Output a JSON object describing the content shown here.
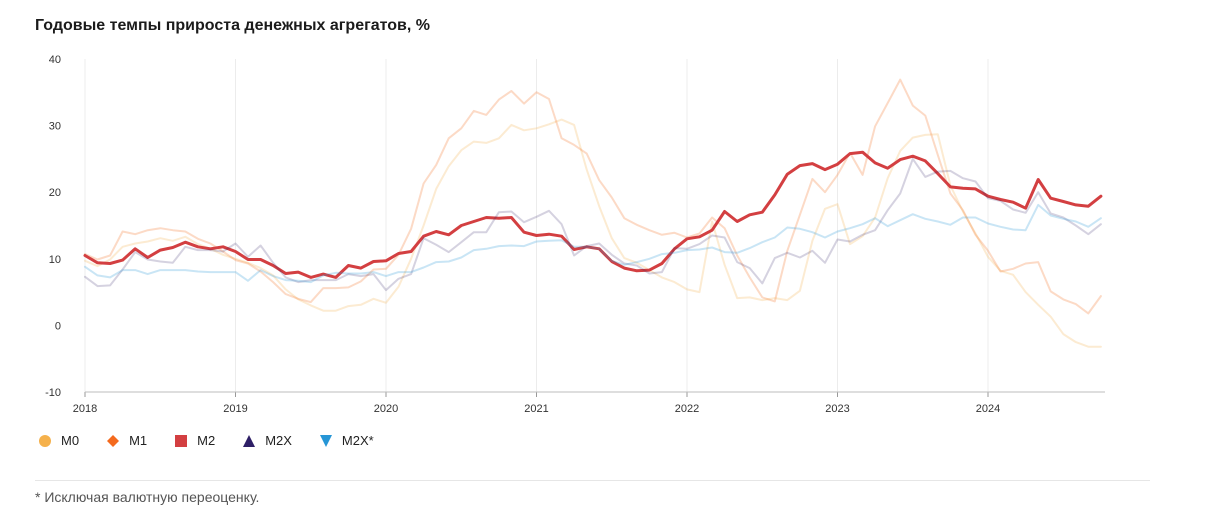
{
  "chart_data": {
    "type": "line",
    "title": "Годовые темпы прироста денежных агрегатов, %",
    "ylim": [
      -10,
      40
    ],
    "y_ticks": [
      "-10",
      "0",
      "10",
      "20",
      "30",
      "40"
    ],
    "x_ticks": [
      "2018",
      "2019",
      "2020",
      "2021",
      "2022",
      "2023",
      "2024"
    ],
    "x_start": "2018-01",
    "x_end": "2024-10",
    "frequency": "monthly",
    "grid": "vertical",
    "legend_position": "bottom-left",
    "series": [
      {
        "name": "M0",
        "color": "#f5b14c",
        "opacity": 0.25,
        "marker": "circle",
        "width": 2,
        "values": [
          9.7,
          8.9,
          9.9,
          11.8,
          12.3,
          12.6,
          13.1,
          12.7,
          13.3,
          12.2,
          11.5,
          10.6,
          10.0,
          9.4,
          8.6,
          7.5,
          5.4,
          3.9,
          3.0,
          2.2,
          2.2,
          2.9,
          3.1,
          4.0,
          3.4,
          5.8,
          10.0,
          15.0,
          20.5,
          23.9,
          26.3,
          27.6,
          27.4,
          28.1,
          30.1,
          29.3,
          29.6,
          30.2,
          30.9,
          30.1,
          23.4,
          17.9,
          13.1,
          10.1,
          9.4,
          8.3,
          7.2,
          6.5,
          5.4,
          5.0,
          15.6,
          9.1,
          4.1,
          4.2,
          3.8,
          4.1,
          3.8,
          5.2,
          12.7,
          17.5,
          18.2,
          12.2,
          13.4,
          16.2,
          22.1,
          26.2,
          28.2,
          28.6,
          28.7,
          21.0,
          17.1,
          13.8,
          10.3,
          8.2,
          7.6,
          5.0,
          3.1,
          1.3,
          -1.3,
          -2.5,
          -3.2,
          -3.2
        ]
      },
      {
        "name": "M1",
        "color": "#f46a1d",
        "opacity": 0.25,
        "marker": "diamond",
        "width": 2,
        "values": [
          10.7,
          9.9,
          10.5,
          14.1,
          13.7,
          14.3,
          14.6,
          14.3,
          14.1,
          13.0,
          12.3,
          11.1,
          9.8,
          9.3,
          8.1,
          6.5,
          4.7,
          4.0,
          3.5,
          5.6,
          5.6,
          5.7,
          6.6,
          8.4,
          8.5,
          10.6,
          14.5,
          21.3,
          24.1,
          28.1,
          29.6,
          32.2,
          31.6,
          33.9,
          35.2,
          33.3,
          35.0,
          34.0,
          28.1,
          27.1,
          25.8,
          21.8,
          19.2,
          16.1,
          15.1,
          14.3,
          13.6,
          13.9,
          13.2,
          13.8,
          16.2,
          14.6,
          10.5,
          7.2,
          4.2,
          3.6,
          11.2,
          16.6,
          22.0,
          20.0,
          22.6,
          25.9,
          22.6,
          29.9,
          33.4,
          36.9,
          33.0,
          31.5,
          25.6,
          19.8,
          17.3,
          13.6,
          11.2,
          8.1,
          8.5,
          9.3,
          9.5,
          5.1,
          3.9,
          3.2,
          1.8,
          4.4
        ]
      },
      {
        "name": "M2",
        "color": "#d33f41",
        "opacity": 1,
        "marker": "square",
        "width": 3,
        "values": [
          10.5,
          9.4,
          9.3,
          9.8,
          11.5,
          10.2,
          11.3,
          11.7,
          12.5,
          11.8,
          11.5,
          11.8,
          11.1,
          9.9,
          9.9,
          9.0,
          7.8,
          8.0,
          7.2,
          7.7,
          7.2,
          9.0,
          8.6,
          9.6,
          9.7,
          10.8,
          11.1,
          13.4,
          14.1,
          13.6,
          15.0,
          15.6,
          16.2,
          16.1,
          16.2,
          14.0,
          13.5,
          13.7,
          13.4,
          11.4,
          11.8,
          11.5,
          9.6,
          8.6,
          8.2,
          8.3,
          9.3,
          11.5,
          13.0,
          13.3,
          14.3,
          17.1,
          15.6,
          16.6,
          17.0,
          19.6,
          22.7,
          24.0,
          24.3,
          23.4,
          24.2,
          25.8,
          26.0,
          24.4,
          23.6,
          24.9,
          25.4,
          24.7,
          22.8,
          20.8,
          20.6,
          20.5,
          19.4,
          18.9,
          18.5,
          17.6,
          21.9,
          19.1,
          18.6,
          18.1,
          17.9,
          19.4
        ]
      },
      {
        "name": "M2X",
        "color": "#2e1f66",
        "opacity": 0.2,
        "marker": "triangle-up",
        "width": 2,
        "values": [
          7.3,
          5.9,
          6.0,
          8.4,
          11.0,
          9.9,
          9.6,
          9.4,
          11.8,
          11.3,
          11.3,
          11.1,
          12.3,
          10.3,
          12.0,
          9.4,
          7.2,
          6.5,
          6.8,
          6.8,
          6.8,
          7.7,
          7.4,
          7.7,
          5.3,
          7.0,
          7.7,
          13.1,
          12.1,
          11.0,
          12.5,
          14.0,
          14.0,
          17.0,
          17.1,
          15.5,
          16.3,
          17.2,
          15.2,
          10.5,
          11.9,
          12.3,
          10.6,
          9.3,
          9.0,
          7.8,
          8.0,
          11.6,
          11.5,
          12.2,
          13.5,
          13.2,
          9.5,
          8.6,
          6.3,
          10.1,
          10.9,
          10.2,
          11.2,
          9.4,
          12.9,
          12.6,
          13.6,
          14.3,
          17.3,
          19.8,
          25.0,
          22.3,
          23.1,
          23.2,
          22.1,
          21.6,
          19.1,
          18.7,
          17.4,
          16.9,
          20.0,
          16.8,
          16.2,
          15.0,
          13.7,
          15.2
        ]
      },
      {
        "name": "M2X*",
        "color": "#2696d6",
        "opacity": 0.25,
        "marker": "triangle-down",
        "width": 2,
        "values": [
          8.8,
          7.5,
          7.2,
          8.3,
          8.3,
          7.7,
          8.3,
          8.3,
          8.3,
          8.1,
          8.0,
          8.0,
          8.0,
          6.7,
          8.3,
          7.4,
          6.8,
          6.7,
          6.5,
          7.5,
          7.9,
          7.8,
          7.8,
          8.0,
          7.4,
          8.0,
          8.0,
          8.7,
          9.5,
          9.6,
          10.2,
          11.3,
          11.5,
          11.9,
          12.0,
          11.9,
          12.6,
          12.7,
          12.8,
          11.8,
          11.8,
          11.5,
          9.7,
          9.1,
          9.5,
          10.0,
          10.7,
          10.9,
          11.3,
          11.4,
          11.7,
          11.0,
          10.9,
          11.6,
          12.5,
          13.2,
          14.7,
          14.5,
          14.0,
          13.2,
          14.1,
          14.6,
          15.2,
          16.1,
          14.9,
          15.8,
          16.7,
          16.0,
          15.6,
          15.1,
          16.2,
          16.2,
          15.3,
          14.8,
          14.4,
          14.3,
          18.1,
          16.5,
          16.0,
          15.6,
          14.8,
          16.1
        ]
      }
    ]
  },
  "footnote": "* Исключая валютную переоценку."
}
